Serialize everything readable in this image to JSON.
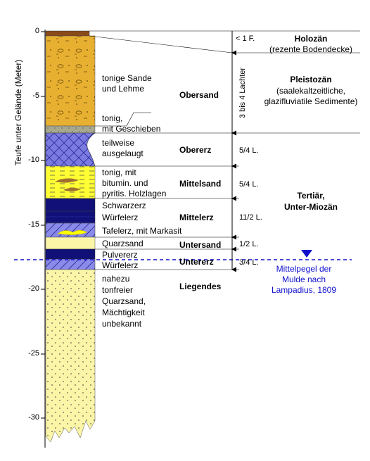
{
  "axis": {
    "label": "Teufe unter Gelände (Meter)",
    "ticks": [
      "0",
      "-5",
      "-10",
      "-15",
      "-20",
      "-25",
      "-30"
    ]
  },
  "layer_texts": {
    "tonige_sande_1": "tonige Sande",
    "tonige_sande_2": "und Lehme",
    "tonig_1": "tonig,",
    "tonig_2": "mit Geschieben",
    "teilweise_1": "teilweise",
    "teilweise_2": "ausgelaugt",
    "bitumin_1": "tonig, mit",
    "bitumin_2": "bitumin. und",
    "bitumin_3": "pyritis. Holzlagen",
    "schwarzerz": "Schwarzerz",
    "wuerfelerz_upper": "Würfelerz",
    "tafelerz": "Tafelerz, mit Markasit",
    "quarzsand": "Quarzsand",
    "pulvererz": "Pulvererz",
    "wuerfelerz_lower": "Würfelerz",
    "liegendes_1": "nahezu",
    "liegendes_2": "tonfreier",
    "liegendes_3": "Quarzsand,",
    "liegendes_4": "Mächtigkeit",
    "liegendes_5": "unbekannt"
  },
  "unit_names": {
    "obersand": "Obersand",
    "obererz": "Obererz",
    "mittelsand": "Mittelsand",
    "mittelerz": "Mittelerz",
    "untersand": "Untersand",
    "untererz": "Untererz",
    "liegendes": "Liegendes"
  },
  "thickness": {
    "holozaen": "< 1 F.",
    "pleistozaen": "3 bis 4 Lachter",
    "obererz": "5/4 L.",
    "mittelsand": "5/4 L.",
    "mittelerz": "11/2 L.",
    "untersand": "1/2 L.",
    "untererz": "3/4 L."
  },
  "epochs": {
    "holozaen_title": "Holozän",
    "holozaen_sub": "(rezente Bodendecke)",
    "pleistozaen_title": "Pleistozän",
    "pleistozaen_sub1": "(saalekaltzeitliche,",
    "pleistozaen_sub2": "glazifluviatile Sedimente)",
    "tertiaer_1": "Tertiär,",
    "tertiaer_2": "Unter-Miozän"
  },
  "water": {
    "line1": "Mittelpegel der",
    "line2": "Mulde nach",
    "line3": "Lampadius, 1809"
  },
  "colors": {
    "sand_orange": "#e8b030",
    "gray_till": "#a8a890",
    "ore_blue": "#7a7ae0",
    "mittelsand_yellow": "#ffff33",
    "dark_ore": "#1a1a8a",
    "tafelerz": "#8a8ae8",
    "liegendes": "#fbf5a8",
    "water_blue": "#1010cc"
  }
}
